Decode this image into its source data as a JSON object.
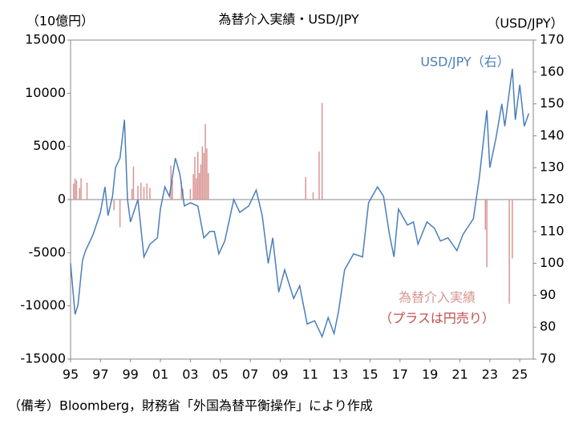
{
  "chart_data": {
    "type": "combo",
    "title": "為替介入実績・USD/JPY",
    "y_label": "（10億円）",
    "y2_label": "（USD/JPY）",
    "annotations": [
      "（プラスは円売り）"
    ],
    "footnote": "（備考）Bloomberg，財務省「外国為替平衡操作」により作成",
    "xlim": [
      1995,
      2025.9
    ],
    "xticks": [
      {
        "value": 1995,
        "label": "95"
      },
      {
        "value": 1997,
        "label": "97"
      },
      {
        "value": 1999,
        "label": "99"
      },
      {
        "value": 2001,
        "label": "01"
      },
      {
        "value": 2003,
        "label": "03"
      },
      {
        "value": 2005,
        "label": "05"
      },
      {
        "value": 2007,
        "label": "07"
      },
      {
        "value": 2009,
        "label": "09"
      },
      {
        "value": 2011,
        "label": "11"
      },
      {
        "value": 2013,
        "label": "13"
      },
      {
        "value": 2015,
        "label": "15"
      },
      {
        "value": 2017,
        "label": "17"
      },
      {
        "value": 2019,
        "label": "19"
      },
      {
        "value": 2021,
        "label": "21"
      },
      {
        "value": 2023,
        "label": "23"
      },
      {
        "value": 2025,
        "label": "25"
      }
    ],
    "ylim": [
      -15000,
      15000
    ],
    "yticks": [
      15000,
      10000,
      5000,
      0,
      -5000,
      -10000,
      -15000
    ],
    "y2lim": [
      70,
      170
    ],
    "y2ticks": [
      170,
      160,
      150,
      140,
      130,
      120,
      110,
      100,
      90,
      80,
      70
    ],
    "series": [
      {
        "name": "為替介入実績",
        "type": "bar",
        "axis": "y",
        "color": "#d99694",
        "x": [
          1995.2,
          1995.3,
          1995.4,
          1995.6,
          1995.7,
          1996.1,
          1997.9,
          1998.3,
          1999.1,
          1999.2,
          1999.5,
          1999.7,
          1999.9,
          2000.1,
          2000.3,
          2001.7,
          2001.8,
          2002.4,
          2002.5,
          2003.0,
          2003.2,
          2003.3,
          2003.4,
          2003.5,
          2003.6,
          2003.7,
          2003.8,
          2003.9,
          2004.0,
          2004.1,
          2004.2,
          2010.7,
          2011.2,
          2011.6,
          2011.8,
          2022.7,
          2022.8,
          2024.3,
          2024.5
        ],
        "values": [
          1500,
          2000,
          1800,
          1100,
          2000,
          1600,
          -1000,
          -2600,
          1000,
          3100,
          1300,
          1600,
          1200,
          1500,
          1100,
          3200,
          1800,
          1700,
          1000,
          1000,
          2400,
          4000,
          2000,
          4500,
          2500,
          3300,
          5000,
          4400,
          7100,
          4800,
          2500,
          2125,
          692,
          4513,
          9091,
          -2838,
          -6350,
          -9790,
          -5530
        ]
      },
      {
        "name": "USD/JPY（右）",
        "type": "line",
        "axis": "y2",
        "color": "#4a7ebb",
        "x": [
          1995.0,
          1995.3,
          1995.5,
          1995.8,
          1996.0,
          1996.5,
          1997.0,
          1997.3,
          1997.5,
          1997.8,
          1998.0,
          1998.3,
          1998.6,
          1998.8,
          1999.0,
          1999.5,
          1999.9,
          2000.3,
          2000.8,
          2001.0,
          2001.3,
          2001.6,
          2002.0,
          2002.3,
          2002.6,
          2003.0,
          2003.5,
          2003.9,
          2004.3,
          2004.6,
          2004.9,
          2005.3,
          2005.9,
          2006.3,
          2006.9,
          2007.4,
          2007.8,
          2008.2,
          2008.5,
          2008.9,
          2009.3,
          2009.9,
          2010.3,
          2010.8,
          2011.3,
          2011.8,
          2012.2,
          2012.6,
          2012.9,
          2013.3,
          2013.9,
          2014.5,
          2014.9,
          2015.5,
          2015.9,
          2016.3,
          2016.6,
          2016.9,
          2017.5,
          2017.9,
          2018.2,
          2018.8,
          2019.3,
          2019.7,
          2020.2,
          2020.8,
          2021.2,
          2021.9,
          2022.3,
          2022.8,
          2023.0,
          2023.4,
          2023.8,
          2024.0,
          2024.5,
          2024.7,
          2025.0,
          2025.3,
          2025.6
        ],
        "values": [
          100,
          84,
          87,
          101,
          104,
          109,
          116,
          124,
          115,
          121,
          130,
          133,
          145,
          120,
          113,
          120,
          102,
          106,
          108,
          117,
          124,
          121,
          133,
          128,
          118,
          119,
          118,
          108,
          110,
          110,
          103,
          107,
          120,
          116,
          118,
          123,
          115,
          100,
          108,
          91,
          98,
          89,
          93,
          81,
          82,
          77,
          83,
          78,
          85,
          98,
          103,
          102,
          119,
          124,
          121,
          109,
          102,
          117,
          112,
          113,
          106,
          113,
          111,
          107,
          108,
          104,
          109,
          114,
          127,
          148,
          130,
          139,
          150,
          143,
          161,
          145,
          156,
          143,
          147
        ]
      }
    ]
  }
}
